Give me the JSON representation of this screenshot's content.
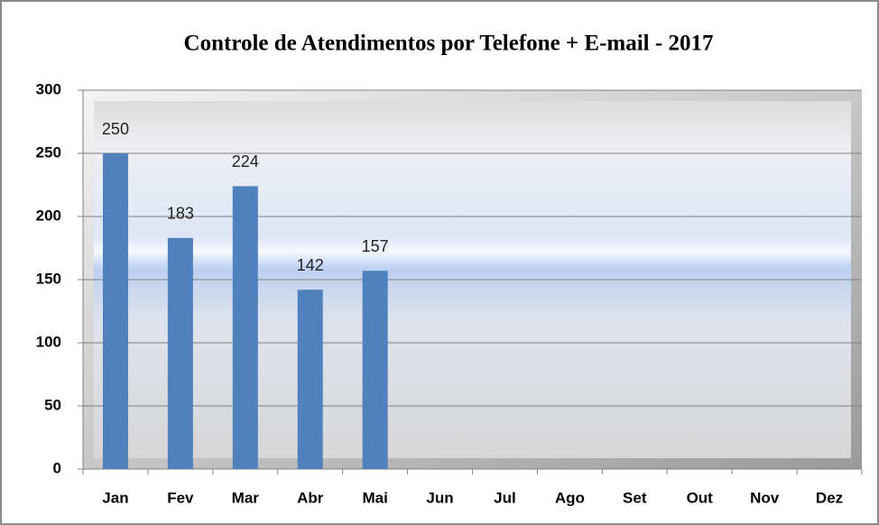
{
  "chart_data": {
    "type": "bar",
    "title": "Controle de Atendimentos por Telefone + E-mail - 2017",
    "categories": [
      "Jan",
      "Fev",
      "Mar",
      "Abr",
      "Mai",
      "Jun",
      "Jul",
      "Ago",
      "Set",
      "Out",
      "Nov",
      "Dez"
    ],
    "values": [
      250,
      183,
      224,
      142,
      157,
      null,
      null,
      null,
      null,
      null,
      null,
      null
    ],
    "color": "#4f81bd",
    "ylim": [
      0,
      300
    ],
    "yticks": [
      0,
      50,
      100,
      150,
      200,
      250,
      300
    ],
    "grid": true
  }
}
